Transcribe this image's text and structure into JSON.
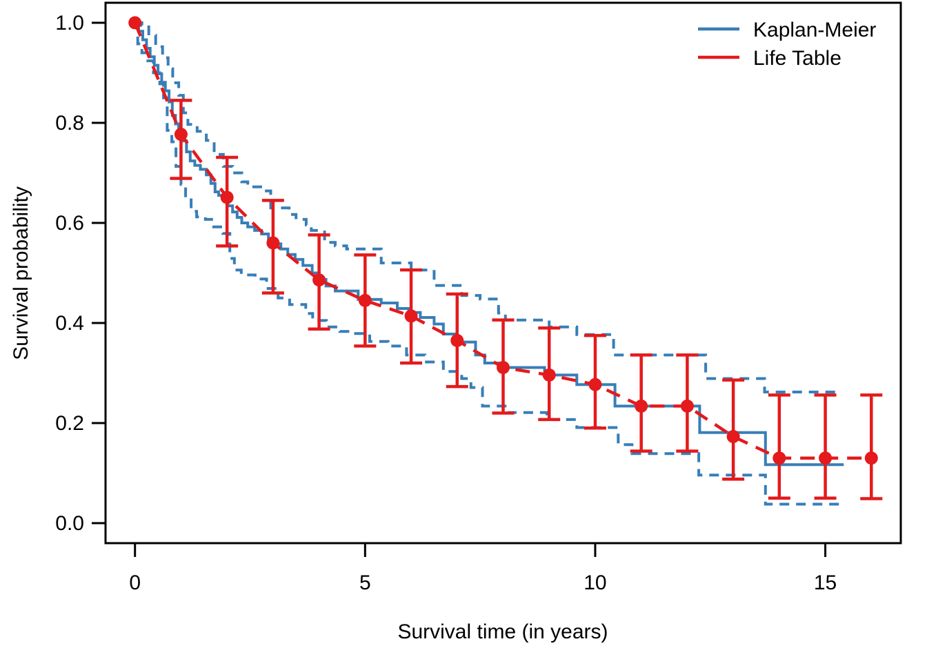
{
  "chart_data": {
    "type": "line",
    "title": "",
    "xlabel": "Survival time (in years)",
    "ylabel": "Survival probability",
    "xlim": [
      0,
      16
    ],
    "ylim": [
      0,
      1
    ],
    "grid": false,
    "legend_position": "top-right",
    "colors": {
      "km_blue": "#377EB8",
      "life_table_red": "#E41A1C",
      "axis_black": "#000000",
      "background": "#FFFFFF"
    },
    "x_ticks": {
      "values": [
        0,
        5,
        10,
        15
      ],
      "labels": [
        "0",
        "5",
        "10",
        "15"
      ]
    },
    "y_ticks": {
      "values": [
        0.0,
        0.2,
        0.4,
        0.6,
        0.8,
        1.0
      ],
      "labels": [
        "0.0",
        "0.2",
        "0.4",
        "0.6",
        "0.8",
        "1.0"
      ]
    },
    "legend": [
      {
        "label": "Kaplan-Meier",
        "color": "#377EB8",
        "style": "solid"
      },
      {
        "label": "Life Table",
        "color": "#E41A1C",
        "style": "solid"
      }
    ],
    "series": [
      {
        "name": "Kaplan-Meier estimate",
        "kind": "step",
        "style": "solid",
        "color": "#377EB8",
        "end_time": 15.4,
        "points": [
          [
            0,
            1.0
          ],
          [
            0.08,
            0.983
          ],
          [
            0.17,
            0.966
          ],
          [
            0.25,
            0.949
          ],
          [
            0.33,
            0.932
          ],
          [
            0.42,
            0.915
          ],
          [
            0.5,
            0.898
          ],
          [
            0.58,
            0.881
          ],
          [
            0.66,
            0.864
          ],
          [
            0.74,
            0.842
          ],
          [
            0.81,
            0.815
          ],
          [
            0.88,
            0.798
          ],
          [
            0.95,
            0.781
          ],
          [
            1.05,
            0.764
          ],
          [
            1.12,
            0.742
          ],
          [
            1.2,
            0.724
          ],
          [
            1.3,
            0.715
          ],
          [
            1.42,
            0.707
          ],
          [
            1.55,
            0.696
          ],
          [
            1.65,
            0.679
          ],
          [
            1.74,
            0.662
          ],
          [
            1.82,
            0.655
          ],
          [
            1.92,
            0.648
          ],
          [
            2.02,
            0.634
          ],
          [
            2.12,
            0.622
          ],
          [
            2.22,
            0.611
          ],
          [
            2.32,
            0.6
          ],
          [
            2.45,
            0.592
          ],
          [
            2.6,
            0.585
          ],
          [
            2.75,
            0.578
          ],
          [
            2.9,
            0.568
          ],
          [
            3.02,
            0.558
          ],
          [
            3.17,
            0.548
          ],
          [
            3.32,
            0.537
          ],
          [
            3.48,
            0.527
          ],
          [
            3.65,
            0.515
          ],
          [
            3.85,
            0.5
          ],
          [
            4.0,
            0.487
          ],
          [
            4.15,
            0.474
          ],
          [
            4.35,
            0.464
          ],
          [
            4.85,
            0.447
          ],
          [
            5.35,
            0.44
          ],
          [
            5.7,
            0.429
          ],
          [
            5.95,
            0.421
          ],
          [
            6.2,
            0.411
          ],
          [
            6.5,
            0.398
          ],
          [
            6.7,
            0.378
          ],
          [
            7.0,
            0.362
          ],
          [
            7.4,
            0.336
          ],
          [
            7.6,
            0.32
          ],
          [
            7.95,
            0.311
          ],
          [
            8.9,
            0.296
          ],
          [
            9.6,
            0.277
          ],
          [
            10.43,
            0.234
          ],
          [
            12.27,
            0.181
          ],
          [
            13.7,
            0.117
          ]
        ]
      },
      {
        "name": "Kaplan-Meier upper 95% CI",
        "kind": "step",
        "style": "dashed",
        "color": "#377EB8",
        "end_time": 15.32,
        "points": [
          [
            0,
            1.0
          ],
          [
            0.15,
            0.995
          ],
          [
            0.3,
            0.975
          ],
          [
            0.45,
            0.952
          ],
          [
            0.6,
            0.93
          ],
          [
            0.72,
            0.908
          ],
          [
            0.82,
            0.88
          ],
          [
            0.95,
            0.855
          ],
          [
            1.05,
            0.82
          ],
          [
            1.15,
            0.797
          ],
          [
            1.35,
            0.783
          ],
          [
            1.55,
            0.765
          ],
          [
            1.72,
            0.737
          ],
          [
            1.92,
            0.713
          ],
          [
            2.12,
            0.7
          ],
          [
            2.32,
            0.682
          ],
          [
            2.45,
            0.672
          ],
          [
            2.8,
            0.664
          ],
          [
            2.95,
            0.63
          ],
          [
            3.35,
            0.617
          ],
          [
            3.5,
            0.607
          ],
          [
            3.72,
            0.596
          ],
          [
            3.83,
            0.585
          ],
          [
            4.12,
            0.561
          ],
          [
            4.35,
            0.554
          ],
          [
            4.6,
            0.548
          ],
          [
            5.35,
            0.52
          ],
          [
            6.0,
            0.506
          ],
          [
            6.5,
            0.475
          ],
          [
            7.1,
            0.455
          ],
          [
            7.5,
            0.448
          ],
          [
            7.9,
            0.42
          ],
          [
            8.05,
            0.406
          ],
          [
            9.0,
            0.392
          ],
          [
            9.6,
            0.377
          ],
          [
            10.4,
            0.336
          ],
          [
            12.4,
            0.289
          ],
          [
            13.68,
            0.262
          ]
        ]
      },
      {
        "name": "Kaplan-Meier lower 95% CI",
        "kind": "step",
        "style": "dashed",
        "color": "#377EB8",
        "end_time": 15.32,
        "points": [
          [
            0,
            1.0
          ],
          [
            0.06,
            0.958
          ],
          [
            0.15,
            0.94
          ],
          [
            0.28,
            0.924
          ],
          [
            0.4,
            0.9
          ],
          [
            0.54,
            0.878
          ],
          [
            0.62,
            0.85
          ],
          [
            0.7,
            0.785
          ],
          [
            0.8,
            0.762
          ],
          [
            0.89,
            0.713
          ],
          [
            1.0,
            0.677
          ],
          [
            1.1,
            0.654
          ],
          [
            1.22,
            0.623
          ],
          [
            1.34,
            0.612
          ],
          [
            1.53,
            0.607
          ],
          [
            1.71,
            0.592
          ],
          [
            1.91,
            0.579
          ],
          [
            2.06,
            0.529
          ],
          [
            2.16,
            0.506
          ],
          [
            2.31,
            0.496
          ],
          [
            2.61,
            0.488
          ],
          [
            2.86,
            0.469
          ],
          [
            3.11,
            0.45
          ],
          [
            3.36,
            0.437
          ],
          [
            3.71,
            0.419
          ],
          [
            3.86,
            0.405
          ],
          [
            4.16,
            0.392
          ],
          [
            4.45,
            0.383
          ],
          [
            4.7,
            0.379
          ],
          [
            5.1,
            0.363
          ],
          [
            5.5,
            0.354
          ],
          [
            5.9,
            0.336
          ],
          [
            6.3,
            0.322
          ],
          [
            6.7,
            0.303
          ],
          [
            7.1,
            0.289
          ],
          [
            7.3,
            0.271
          ],
          [
            7.55,
            0.234
          ],
          [
            8.1,
            0.221
          ],
          [
            8.95,
            0.207
          ],
          [
            9.6,
            0.191
          ],
          [
            10.5,
            0.157
          ],
          [
            10.8,
            0.139
          ],
          [
            12.25,
            0.096
          ],
          [
            13.7,
            0.038
          ]
        ]
      },
      {
        "name": "Life Table estimate",
        "kind": "points-errorbars",
        "style": "dashed",
        "color": "#E41A1C",
        "points": [
          {
            "t": 0,
            "s": 1.0,
            "lo": null,
            "hi": null
          },
          {
            "t": 1,
            "s": 0.777,
            "lo": 0.689,
            "hi": 0.845
          },
          {
            "t": 2,
            "s": 0.651,
            "lo": 0.554,
            "hi": 0.731
          },
          {
            "t": 3,
            "s": 0.56,
            "lo": 0.46,
            "hi": 0.645
          },
          {
            "t": 4,
            "s": 0.486,
            "lo": 0.388,
            "hi": 0.576
          },
          {
            "t": 5,
            "s": 0.445,
            "lo": 0.354,
            "hi": 0.536
          },
          {
            "t": 6,
            "s": 0.414,
            "lo": 0.32,
            "hi": 0.506
          },
          {
            "t": 7,
            "s": 0.365,
            "lo": 0.273,
            "hi": 0.458
          },
          {
            "t": 8,
            "s": 0.311,
            "lo": 0.22,
            "hi": 0.406
          },
          {
            "t": 9,
            "s": 0.296,
            "lo": 0.207,
            "hi": 0.39
          },
          {
            "t": 10,
            "s": 0.277,
            "lo": 0.19,
            "hi": 0.375
          },
          {
            "t": 11,
            "s": 0.234,
            "lo": 0.144,
            "hi": 0.336
          },
          {
            "t": 12,
            "s": 0.234,
            "lo": 0.144,
            "hi": 0.336
          },
          {
            "t": 13,
            "s": 0.173,
            "lo": 0.088,
            "hi": 0.286
          },
          {
            "t": 14,
            "s": 0.13,
            "lo": 0.05,
            "hi": 0.256
          },
          {
            "t": 15,
            "s": 0.13,
            "lo": 0.05,
            "hi": 0.256
          },
          {
            "t": 16,
            "s": 0.13,
            "lo": 0.049,
            "hi": 0.256
          }
        ]
      }
    ]
  }
}
